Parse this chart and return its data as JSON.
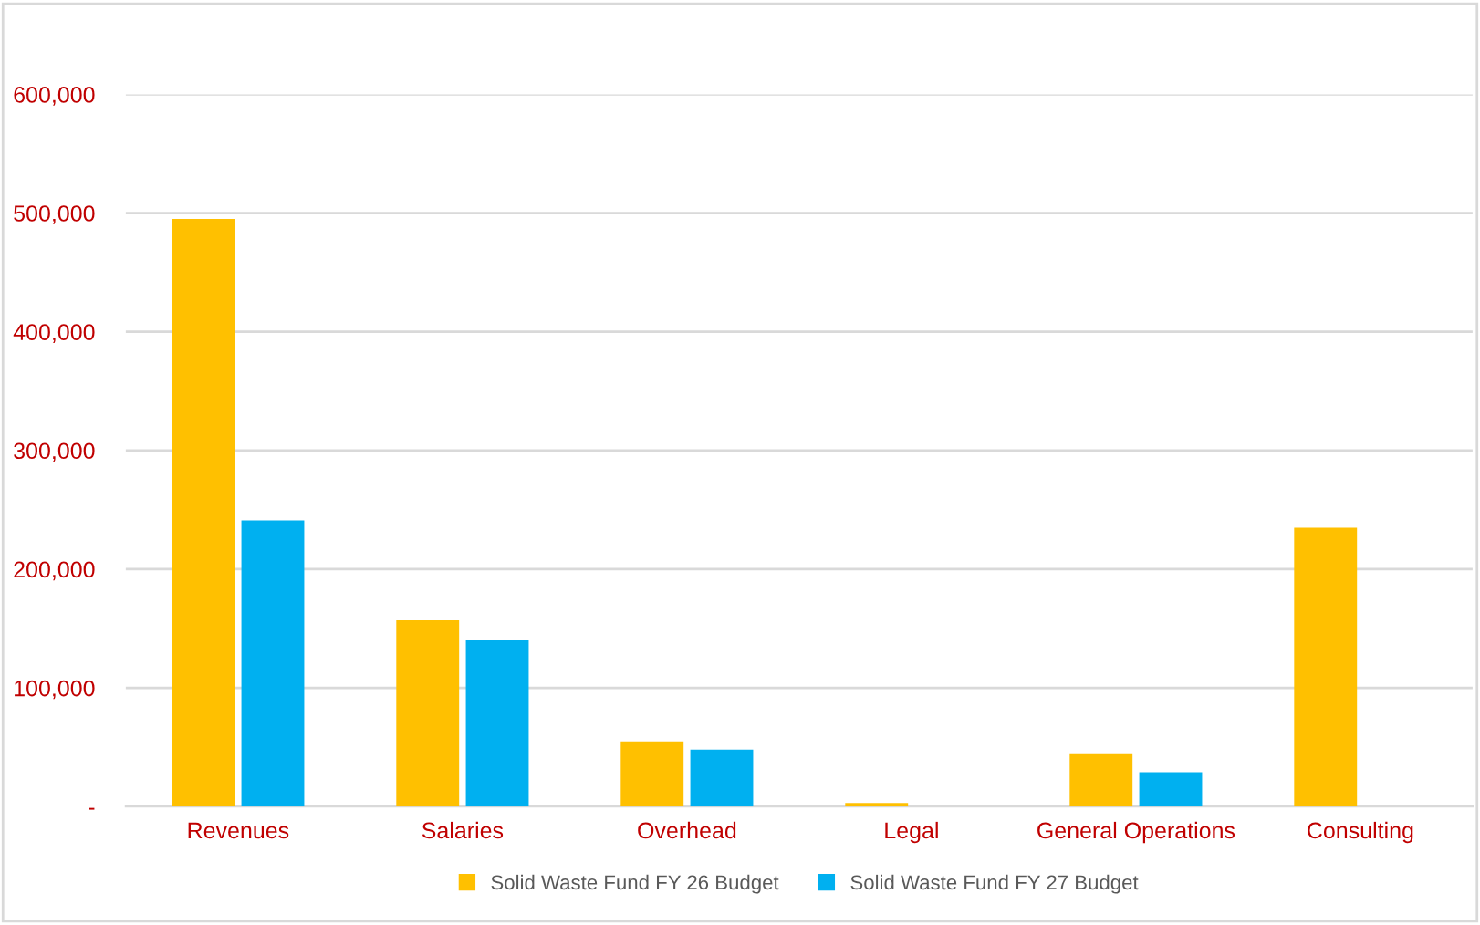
{
  "chart_data": {
    "type": "bar",
    "categories": [
      "Revenues",
      "Salaries",
      "Overhead",
      "Legal",
      "General Operations",
      "Consulting"
    ],
    "series": [
      {
        "name": "Solid Waste Fund FY 26 Budget",
        "color": "#ffc000",
        "values": [
          495000,
          157000,
          55000,
          3000,
          45000,
          235000
        ]
      },
      {
        "name": "Solid Waste Fund FY 27 Budget",
        "color": "#00b0f0",
        "values": [
          241000,
          140000,
          48000,
          null,
          29000,
          null
        ]
      }
    ],
    "ylim": [
      0,
      600000
    ],
    "yticks": [
      {
        "value": 0,
        "label": "-"
      },
      {
        "value": 100000,
        "label": "100,000"
      },
      {
        "value": 200000,
        "label": "200,000"
      },
      {
        "value": 300000,
        "label": "300,000"
      },
      {
        "value": 400000,
        "label": "400,000"
      },
      {
        "value": 500000,
        "label": "500,000"
      },
      {
        "value": 600000,
        "label": "600,000"
      }
    ],
    "grid": "y",
    "legend": "bottom"
  }
}
